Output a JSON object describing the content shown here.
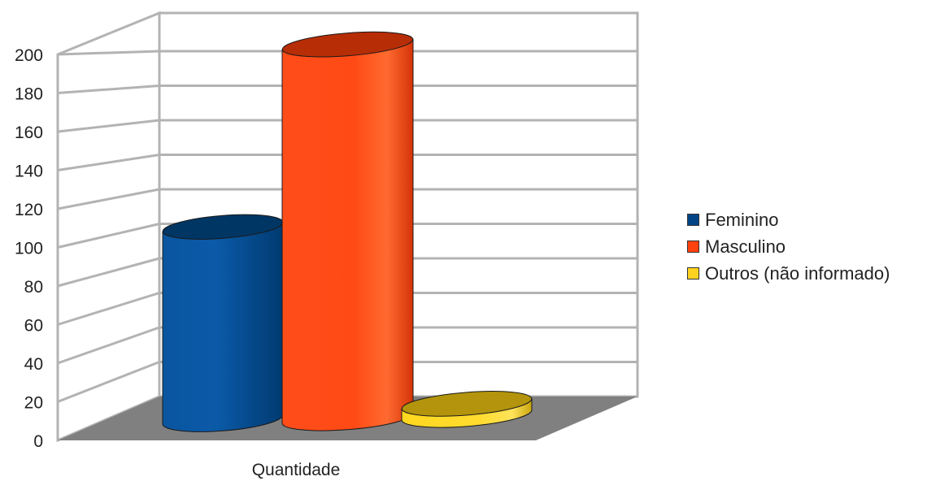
{
  "chart_data": {
    "type": "bar",
    "style": "3d-cylinder",
    "categories": [
      "Quantidade"
    ],
    "series": [
      {
        "name": "Feminino",
        "values": [
          103
        ],
        "color": "#004586"
      },
      {
        "name": "Masculino",
        "values": [
          200
        ],
        "color": "#ff420e"
      },
      {
        "name": "Outros (não informado)",
        "values": [
          6
        ],
        "color": "#ffd320"
      }
    ],
    "yticks": [
      "0",
      "20",
      "40",
      "60",
      "80",
      "100",
      "120",
      "140",
      "160",
      "180",
      "200"
    ],
    "ylim": [
      0,
      200
    ],
    "grid": true,
    "legend_position": "right"
  }
}
